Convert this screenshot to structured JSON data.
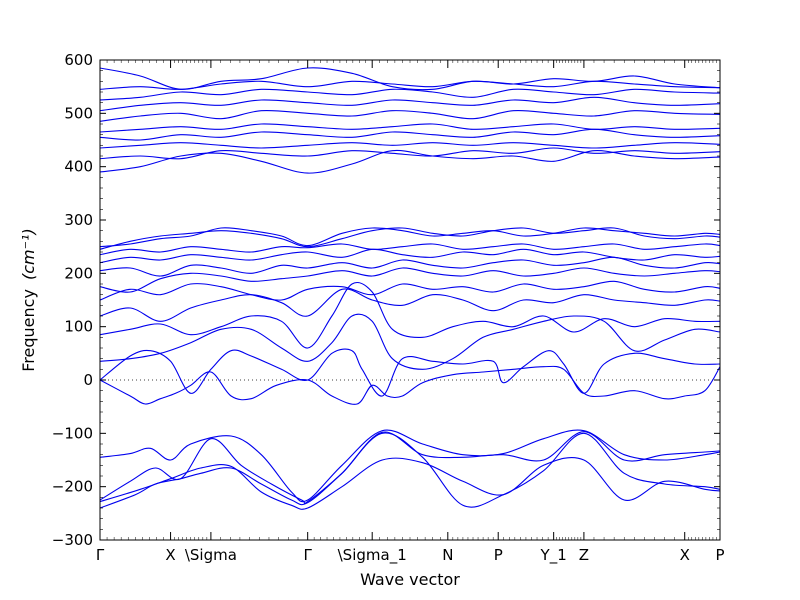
{
  "chart_data": {
    "type": "line",
    "title": "",
    "xlabel": "Wave vector",
    "ylabel": "Frequency",
    "ylabel_unit": "(cm⁻¹)",
    "ylim": [
      -300,
      600
    ],
    "yticks": [
      -300,
      -200,
      -100,
      0,
      100,
      200,
      300,
      400,
      500,
      600
    ],
    "x_path": {
      "ticks": [
        {
          "label": "Γ",
          "x": 0.0
        },
        {
          "label": "X",
          "x": 0.7
        },
        {
          "label": "\\Sigma",
          "x": 1.1
        },
        {
          "label": "Γ",
          "x": 2.06
        },
        {
          "label": "\\Sigma_1",
          "x": 2.7
        },
        {
          "label": "N",
          "x": 3.45
        },
        {
          "label": "P",
          "x": 3.95
        },
        {
          "label": "Y_1",
          "x": 4.5
        },
        {
          "label": "Z",
          "x": 4.8
        },
        {
          "label": "X",
          "x": 5.8
        },
        {
          "label": "P",
          "x": 6.15
        }
      ],
      "xlim": [
        0,
        6.15
      ]
    },
    "zero_line": true,
    "line_color": "#0000ee",
    "bands": [
      {
        "x": [
          0,
          0.35,
          0.55,
          0.8,
          1.0,
          1.3,
          1.6,
          1.9,
          2.06,
          2.4,
          2.8,
          3.2,
          3.6,
          4.0,
          4.4,
          4.8,
          5.2,
          5.6,
          6.0,
          6.15
        ],
        "y": [
          -240,
          -215,
          -195,
          -185,
          -175,
          -165,
          -195,
          -225,
          -230,
          -175,
          -100,
          -145,
          -235,
          -215,
          -170,
          -100,
          -175,
          -195,
          -200,
          -205
        ]
      },
      {
        "x": [
          0,
          0.4,
          0.7,
          1.0,
          1.3,
          1.6,
          1.9,
          2.06,
          2.4,
          2.8,
          3.2,
          3.6,
          4.0,
          4.4,
          4.8,
          5.2,
          5.6,
          6.0,
          6.15
        ],
        "y": [
          -228,
          -205,
          -185,
          -165,
          -162,
          -210,
          -235,
          -240,
          -200,
          -150,
          -155,
          -190,
          -215,
          -160,
          -150,
          -225,
          -190,
          -205,
          -208
        ]
      },
      {
        "x": [
          0,
          0.3,
          0.55,
          0.8,
          1.1,
          1.4,
          1.7,
          2.0,
          2.06,
          2.4,
          2.8,
          3.2,
          3.6,
          4.0,
          4.4,
          4.8,
          5.2,
          5.6,
          6.0,
          6.15
        ],
        "y": [
          -225,
          -190,
          -165,
          -185,
          -110,
          -160,
          -195,
          -225,
          -228,
          -175,
          -98,
          -140,
          -145,
          -140,
          -150,
          -97,
          -150,
          -140,
          -135,
          -133
        ]
      },
      {
        "x": [
          0,
          0.3,
          0.5,
          0.7,
          0.9,
          1.3,
          1.6,
          1.9,
          2.06,
          2.4,
          2.8,
          3.2,
          3.6,
          4.0,
          4.4,
          4.8,
          5.2,
          5.6,
          6.0,
          6.15
        ],
        "y": [
          -145,
          -138,
          -128,
          -150,
          -120,
          -105,
          -140,
          -210,
          -225,
          -160,
          -95,
          -120,
          -140,
          -138,
          -110,
          -95,
          -140,
          -150,
          -140,
          -135
        ]
      },
      {
        "x": [
          0,
          0.3,
          0.45,
          0.6,
          0.75,
          0.9,
          1.1,
          1.3,
          1.5,
          1.75,
          2.06,
          2.3,
          2.55,
          2.7,
          2.85,
          3.0,
          3.2,
          3.5,
          3.8,
          4.1,
          4.4,
          4.6,
          4.8,
          5.0,
          5.3,
          5.6,
          5.8,
          6.0,
          6.15
        ],
        "y": [
          0,
          -30,
          -45,
          -35,
          -25,
          -10,
          15,
          -30,
          -35,
          -10,
          0,
          -30,
          -45,
          -10,
          -30,
          -30,
          -5,
          10,
          15,
          20,
          25,
          20,
          -25,
          -30,
          -20,
          -35,
          -30,
          -20,
          25
        ]
      },
      {
        "x": [
          0,
          0.3,
          0.5,
          0.7,
          0.9,
          1.1,
          1.3,
          1.5,
          1.8,
          2.06,
          2.3,
          2.5,
          2.6,
          2.8,
          3.0,
          3.3,
          3.6,
          3.9,
          4.0,
          4.2,
          4.45,
          4.6,
          4.8,
          5.0,
          5.3,
          5.6,
          5.9,
          6.15
        ],
        "y": [
          0,
          45,
          55,
          35,
          -25,
          20,
          55,
          45,
          20,
          0,
          50,
          55,
          20,
          -30,
          40,
          35,
          30,
          35,
          -5,
          25,
          55,
          30,
          -25,
          30,
          50,
          40,
          30,
          30
        ]
      },
      {
        "x": [
          0,
          0.3,
          0.6,
          0.9,
          1.2,
          1.5,
          1.8,
          2.06,
          2.3,
          2.5,
          2.7,
          2.9,
          3.2,
          3.5,
          3.8,
          4.1,
          4.4,
          4.7,
          5.0,
          5.3,
          5.6,
          5.9,
          6.15
        ],
        "y": [
          35,
          40,
          50,
          70,
          95,
          95,
          60,
          35,
          70,
          120,
          110,
          40,
          20,
          40,
          80,
          95,
          110,
          120,
          110,
          55,
          75,
          95,
          90
        ]
      },
      {
        "x": [
          0,
          0.3,
          0.6,
          0.9,
          1.2,
          1.5,
          1.8,
          2.06,
          2.3,
          2.5,
          2.7,
          2.9,
          3.2,
          3.5,
          3.8,
          4.1,
          4.4,
          4.7,
          5.0,
          5.3,
          5.6,
          5.9,
          6.15
        ],
        "y": [
          85,
          95,
          105,
          85,
          100,
          120,
          110,
          60,
          120,
          180,
          165,
          95,
          80,
          100,
          110,
          100,
          120,
          90,
          115,
          100,
          115,
          110,
          110
        ]
      },
      {
        "x": [
          0,
          0.3,
          0.6,
          0.9,
          1.2,
          1.5,
          1.8,
          2.06,
          2.4,
          2.7,
          3.0,
          3.3,
          3.6,
          3.9,
          4.2,
          4.5,
          4.8,
          5.1,
          5.4,
          5.7,
          6.0,
          6.15
        ],
        "y": [
          120,
          135,
          110,
          135,
          150,
          160,
          145,
          120,
          170,
          150,
          140,
          160,
          150,
          130,
          150,
          145,
          160,
          150,
          145,
          140,
          150,
          148
        ]
      },
      {
        "x": [
          0,
          0.3,
          0.6,
          0.9,
          1.2,
          1.5,
          1.8,
          2.06,
          2.4,
          2.7,
          3.0,
          3.3,
          3.6,
          3.9,
          4.2,
          4.5,
          4.8,
          5.1,
          5.4,
          5.7,
          6.0,
          6.15
        ],
        "y": [
          150,
          170,
          160,
          180,
          175,
          160,
          150,
          170,
          175,
          160,
          180,
          170,
          175,
          165,
          180,
          170,
          175,
          185,
          170,
          165,
          175,
          172
        ]
      },
      {
        "x": [
          0,
          0.3,
          0.6,
          0.9,
          1.2,
          1.5,
          1.8,
          2.06,
          2.4,
          2.7,
          3.0,
          3.3,
          3.6,
          3.9,
          4.2,
          4.5,
          4.8,
          5.1,
          5.4,
          5.7,
          6.0,
          6.15
        ],
        "y": [
          175,
          165,
          190,
          200,
          195,
          185,
          190,
          195,
          205,
          195,
          210,
          200,
          195,
          205,
          195,
          200,
          210,
          200,
          195,
          200,
          205,
          203
        ]
      },
      {
        "x": [
          0,
          0.3,
          0.6,
          0.9,
          1.2,
          1.5,
          1.8,
          2.06,
          2.4,
          2.7,
          3.0,
          3.3,
          3.6,
          3.9,
          4.2,
          4.5,
          4.8,
          5.1,
          5.4,
          5.7,
          6.0,
          6.15
        ],
        "y": [
          205,
          210,
          195,
          215,
          210,
          200,
          215,
          210,
          220,
          210,
          225,
          215,
          210,
          220,
          225,
          215,
          220,
          230,
          215,
          210,
          220,
          218
        ]
      },
      {
        "x": [
          0,
          0.3,
          0.6,
          0.9,
          1.2,
          1.5,
          1.8,
          2.06,
          2.4,
          2.7,
          3.0,
          3.3,
          3.6,
          3.9,
          4.2,
          4.5,
          4.8,
          5.1,
          5.4,
          5.7,
          6.0,
          6.15
        ],
        "y": [
          220,
          230,
          225,
          235,
          230,
          225,
          235,
          240,
          230,
          245,
          235,
          230,
          240,
          235,
          245,
          235,
          240,
          230,
          225,
          235,
          230,
          232
        ]
      },
      {
        "x": [
          0,
          0.3,
          0.6,
          0.9,
          1.2,
          1.5,
          1.8,
          2.06,
          2.4,
          2.7,
          3.0,
          3.3,
          3.6,
          3.9,
          4.2,
          4.5,
          4.8,
          5.1,
          5.4,
          5.7,
          6.0,
          6.15
        ],
        "y": [
          235,
          245,
          240,
          250,
          245,
          240,
          250,
          248,
          255,
          245,
          250,
          255,
          245,
          250,
          255,
          245,
          250,
          255,
          245,
          250,
          255,
          252
        ]
      },
      {
        "x": [
          0,
          0.3,
          0.6,
          0.9,
          1.2,
          1.5,
          1.8,
          2.06,
          2.4,
          2.7,
          3.0,
          3.3,
          3.6,
          3.9,
          4.2,
          4.5,
          4.8,
          5.1,
          5.4,
          5.7,
          6.0,
          6.15
        ],
        "y": [
          245,
          260,
          270,
          275,
          280,
          275,
          265,
          250,
          265,
          280,
          285,
          275,
          270,
          280,
          285,
          275,
          280,
          285,
          270,
          265,
          270,
          268
        ]
      },
      {
        "x": [
          0,
          0.3,
          0.6,
          0.9,
          1.2,
          1.5,
          1.8,
          2.06,
          2.4,
          2.7,
          3.0,
          3.3,
          3.6,
          3.9,
          4.2,
          4.5,
          4.8,
          5.1,
          5.4,
          5.7,
          6.0,
          6.15
        ],
        "y": [
          250,
          255,
          265,
          270,
          285,
          280,
          270,
          252,
          275,
          285,
          280,
          270,
          275,
          280,
          270,
          275,
          285,
          280,
          275,
          270,
          275,
          273
        ]
      },
      {
        "x": [
          0,
          0.4,
          0.8,
          1.2,
          1.6,
          2.06,
          2.5,
          2.9,
          3.3,
          3.7,
          4.1,
          4.5,
          4.9,
          5.3,
          5.7,
          6.15
        ],
        "y": [
          390,
          400,
          420,
          425,
          410,
          388,
          405,
          430,
          420,
          415,
          420,
          410,
          430,
          420,
          415,
          418
        ]
      },
      {
        "x": [
          0,
          0.4,
          0.8,
          1.2,
          1.6,
          2.06,
          2.5,
          2.9,
          3.3,
          3.7,
          4.1,
          4.5,
          4.9,
          5.3,
          5.7,
          6.15
        ],
        "y": [
          415,
          420,
          415,
          430,
          425,
          420,
          430,
          425,
          420,
          430,
          425,
          435,
          425,
          430,
          425,
          428
        ]
      },
      {
        "x": [
          0,
          0.4,
          0.8,
          1.2,
          1.6,
          2.06,
          2.5,
          2.9,
          3.3,
          3.7,
          4.1,
          4.5,
          4.9,
          5.3,
          5.7,
          6.15
        ],
        "y": [
          435,
          440,
          445,
          440,
          435,
          440,
          445,
          440,
          445,
          440,
          445,
          440,
          435,
          440,
          445,
          442
        ]
      },
      {
        "x": [
          0,
          0.4,
          0.8,
          1.2,
          1.6,
          2.06,
          2.5,
          2.9,
          3.3,
          3.7,
          4.1,
          4.5,
          4.9,
          5.3,
          5.7,
          6.15
        ],
        "y": [
          455,
          450,
          460,
          455,
          465,
          460,
          455,
          465,
          460,
          455,
          465,
          460,
          470,
          460,
          455,
          458
        ]
      },
      {
        "x": [
          0,
          0.4,
          0.8,
          1.2,
          1.6,
          2.06,
          2.5,
          2.9,
          3.3,
          3.7,
          4.1,
          4.5,
          4.9,
          5.3,
          5.7,
          6.15
        ],
        "y": [
          465,
          470,
          475,
          470,
          480,
          475,
          470,
          475,
          480,
          470,
          475,
          480,
          470,
          475,
          470,
          472
        ]
      },
      {
        "x": [
          0,
          0.4,
          0.8,
          1.2,
          1.6,
          2.06,
          2.5,
          2.9,
          3.3,
          3.7,
          4.1,
          4.5,
          4.9,
          5.3,
          5.7,
          6.15
        ],
        "y": [
          485,
          495,
          500,
          490,
          505,
          500,
          495,
          505,
          500,
          490,
          505,
          500,
          495,
          505,
          500,
          498
        ]
      },
      {
        "x": [
          0,
          0.4,
          0.8,
          1.2,
          1.6,
          2.06,
          2.5,
          2.9,
          3.3,
          3.7,
          4.1,
          4.5,
          4.9,
          5.3,
          5.7,
          6.15
        ],
        "y": [
          505,
          515,
          520,
          515,
          525,
          520,
          515,
          525,
          520,
          515,
          525,
          520,
          530,
          520,
          515,
          518
        ]
      },
      {
        "x": [
          0,
          0.4,
          0.8,
          1.2,
          1.6,
          2.06,
          2.5,
          2.9,
          3.3,
          3.7,
          4.1,
          4.5,
          4.9,
          5.3,
          5.7,
          6.15
        ],
        "y": [
          525,
          530,
          540,
          535,
          545,
          540,
          535,
          545,
          540,
          530,
          545,
          540,
          535,
          545,
          540,
          538
        ]
      },
      {
        "x": [
          0,
          0.4,
          0.8,
          1.2,
          1.6,
          2.06,
          2.5,
          2.9,
          3.3,
          3.7,
          4.1,
          4.5,
          4.9,
          5.3,
          5.7,
          6.15
        ],
        "y": [
          545,
          550,
          545,
          555,
          560,
          550,
          560,
          555,
          550,
          560,
          555,
          550,
          560,
          555,
          550,
          548
        ]
      },
      {
        "x": [
          0,
          0.4,
          0.8,
          1.2,
          1.6,
          2.06,
          2.5,
          2.9,
          3.3,
          3.7,
          4.1,
          4.5,
          4.9,
          5.3,
          5.7,
          6.15
        ],
        "y": [
          585,
          570,
          545,
          560,
          565,
          585,
          575,
          550,
          545,
          560,
          555,
          565,
          560,
          570,
          555,
          548
        ]
      }
    ]
  }
}
